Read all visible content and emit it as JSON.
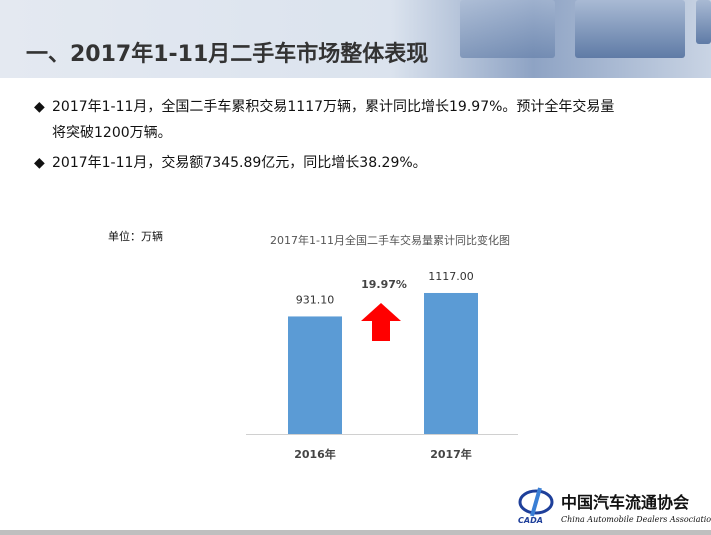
{
  "title": "一、2017年1-11月二手车市场整体表现",
  "bullets": [
    {
      "icon": "diamond-bullet",
      "text": "2017年1-11月，全国二手车累积交易1117万辆，累计同比增长19.97%。预计全年交易量",
      "text2": "将突破1200万辆。"
    },
    {
      "icon": "diamond-bullet",
      "text": "2017年1-11月，交易额7345.89亿元，同比增长38.29%。"
    }
  ],
  "unit": "单位：万辆",
  "chart_data": {
    "type": "bar",
    "title": "2017年1-11月全国二手车交易量累计同比变化图",
    "categories": [
      "2016年",
      "2017年"
    ],
    "values": [
      931.1,
      1117.0
    ],
    "data_labels": [
      "931.10",
      "1117.00"
    ],
    "ylim": [
      0,
      1200
    ],
    "grid": false,
    "bar_color": "#5b9bd5",
    "annotation": {
      "text": "19.97%",
      "icon": "up-arrow-icon",
      "color": "#ff0000"
    }
  },
  "logo": {
    "abbr": "CADA",
    "cn": "中国汽车流通协会",
    "en": "China Automobile Dealers Association"
  }
}
